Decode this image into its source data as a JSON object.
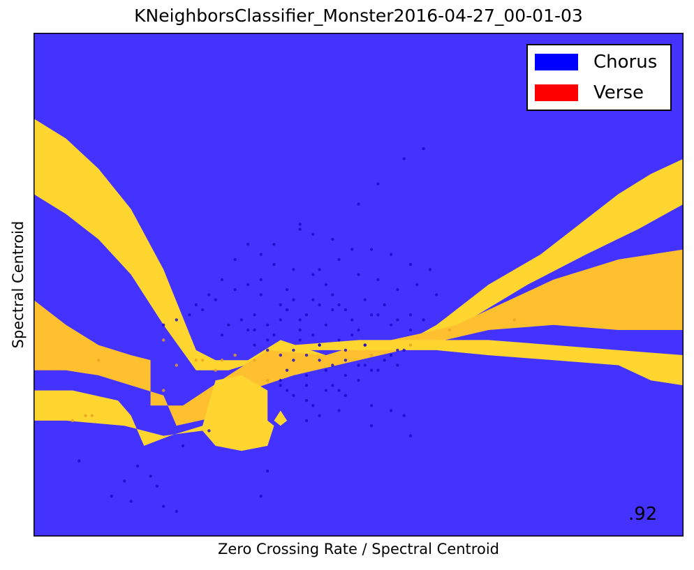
{
  "title": "KNeighborsClassifier_Monster2016-04-27_00-01-03",
  "xlabel": "Zero Crossing Rate / Spectral Centroid",
  "ylabel": "Spectral Centroid",
  "score_text": ".92",
  "legend": [
    {
      "label": "Chorus",
      "color": "#0000ff"
    },
    {
      "label": "Verse",
      "color": "#ff0000"
    }
  ],
  "colors": {
    "chorus_region": "#4433ff",
    "verse_region": "#ffc030",
    "verse_region_light": "#ffd530",
    "chorus_point": "#1a08c8",
    "verse_point": "#e8a020"
  },
  "chart_data": {
    "type": "scatter",
    "title": "KNeighborsClassifier_Monster2016-04-27_00-01-03",
    "xlabel": "Zero Crossing Rate / Spectral Centroid",
    "ylabel": "Spectral Centroid",
    "ticks": "none",
    "grid": false,
    "legend_position": "top-right",
    "background": "decision-region",
    "xlim": [
      0,
      1
    ],
    "ylim": [
      0,
      1
    ],
    "decision_regions": [
      {
        "class": "Verse",
        "shade": "light",
        "outline": [
          [
            0,
            0.83
          ],
          [
            0.05,
            0.79
          ],
          [
            0.1,
            0.73
          ],
          [
            0.15,
            0.65
          ],
          [
            0.2,
            0.53
          ],
          [
            0.25,
            0.37
          ],
          [
            0.28,
            0.35
          ],
          [
            0.33,
            0.35
          ],
          [
            0.38,
            0.39
          ],
          [
            0.45,
            0.36
          ],
          [
            0.55,
            0.37
          ],
          [
            0.62,
            0.42
          ],
          [
            0.7,
            0.5
          ],
          [
            0.78,
            0.56
          ],
          [
            0.85,
            0.63
          ],
          [
            0.9,
            0.68
          ],
          [
            0.95,
            0.72
          ],
          [
            1,
            0.75
          ],
          [
            1,
            0.66
          ],
          [
            0.93,
            0.61
          ],
          [
            0.85,
            0.56
          ],
          [
            0.76,
            0.5
          ],
          [
            0.67,
            0.43
          ],
          [
            0.6,
            0.38
          ],
          [
            0.5,
            0.35
          ],
          [
            0.42,
            0.33
          ],
          [
            0.35,
            0.35
          ],
          [
            0.3,
            0.33
          ],
          [
            0.25,
            0.33
          ],
          [
            0.2,
            0.42
          ],
          [
            0.15,
            0.52
          ],
          [
            0.1,
            0.59
          ],
          [
            0.05,
            0.64
          ],
          [
            0,
            0.68
          ]
        ]
      },
      {
        "class": "Verse",
        "shade": "dark",
        "outline": [
          [
            0,
            0.47
          ],
          [
            0.05,
            0.42
          ],
          [
            0.1,
            0.38
          ],
          [
            0.15,
            0.36
          ],
          [
            0.18,
            0.35
          ],
          [
            0.18,
            0.26
          ],
          [
            0.23,
            0.26
          ],
          [
            0.3,
            0.32
          ],
          [
            0.36,
            0.37
          ],
          [
            0.45,
            0.36
          ],
          [
            0.5,
            0.38
          ],
          [
            0.55,
            0.39
          ],
          [
            0.62,
            0.41
          ],
          [
            0.65,
            0.42
          ],
          [
            0.8,
            0.51
          ],
          [
            0.9,
            0.55
          ],
          [
            0.95,
            0.56
          ],
          [
            1,
            0.57
          ],
          [
            1,
            0.41
          ],
          [
            0.9,
            0.41
          ],
          [
            0.8,
            0.42
          ],
          [
            0.7,
            0.41
          ],
          [
            0.6,
            0.38
          ],
          [
            0.5,
            0.35
          ],
          [
            0.4,
            0.32
          ],
          [
            0.33,
            0.29
          ],
          [
            0.29,
            0.24
          ],
          [
            0.22,
            0.22
          ],
          [
            0.2,
            0.28
          ],
          [
            0.1,
            0.32
          ],
          [
            0.05,
            0.33
          ],
          [
            0,
            0.33
          ]
        ]
      },
      {
        "class": "Verse",
        "shade": "light",
        "outline": [
          [
            0,
            0.29
          ],
          [
            0.06,
            0.29
          ],
          [
            0.13,
            0.27
          ],
          [
            0.15,
            0.24
          ],
          [
            0.17,
            0.18
          ],
          [
            0.21,
            0.2
          ],
          [
            0.26,
            0.22
          ],
          [
            0.28,
            0.31
          ],
          [
            0.32,
            0.32
          ],
          [
            0.36,
            0.29
          ],
          [
            0.36,
            0.23
          ],
          [
            0.37,
            0.22
          ],
          [
            0.36,
            0.18
          ],
          [
            0.32,
            0.17
          ],
          [
            0.28,
            0.18
          ],
          [
            0.26,
            0.21
          ],
          [
            0.2,
            0.2
          ],
          [
            0.14,
            0.22
          ],
          [
            0.05,
            0.23
          ],
          [
            0,
            0.23
          ]
        ]
      },
      {
        "class": "Verse",
        "shade": "light",
        "outline": [
          [
            0.62,
            0.39
          ],
          [
            0.7,
            0.39
          ],
          [
            0.8,
            0.38
          ],
          [
            0.9,
            0.37
          ],
          [
            1,
            0.36
          ],
          [
            1,
            0.3
          ],
          [
            0.95,
            0.31
          ],
          [
            0.9,
            0.34
          ],
          [
            0.8,
            0.35
          ],
          [
            0.7,
            0.36
          ],
          [
            0.62,
            0.37
          ],
          [
            0.5,
            0.37
          ],
          [
            0.4,
            0.37
          ],
          [
            0.4,
            0.38
          ],
          [
            0.5,
            0.39
          ]
        ]
      },
      {
        "class": "Verse",
        "shade": "light",
        "outline": [
          [
            0.38,
            0.25
          ],
          [
            0.39,
            0.23
          ],
          [
            0.38,
            0.22
          ],
          [
            0.37,
            0.23
          ]
        ]
      }
    ],
    "series": [
      {
        "name": "Chorus",
        "x": [
          0.46,
          0.43,
          0.41,
          0.39,
          0.38,
          0.36,
          0.35,
          0.34,
          0.33,
          0.45,
          0.47,
          0.49,
          0.51,
          0.53,
          0.55,
          0.37,
          0.38,
          0.39,
          0.4,
          0.41,
          0.42,
          0.44,
          0.45,
          0.46,
          0.48,
          0.5,
          0.52,
          0.54,
          0.56,
          0.58,
          0.41,
          0.43,
          0.44,
          0.47,
          0.49,
          0.51,
          0.36,
          0.34,
          0.32,
          0.3,
          0.29,
          0.42,
          0.44,
          0.46,
          0.48,
          0.5,
          0.52,
          0.54,
          0.56,
          0.38,
          0.4,
          0.39,
          0.42,
          0.45,
          0.48,
          0.51,
          0.53,
          0.55,
          0.57,
          0.43,
          0.4,
          0.37,
          0.35,
          0.33,
          0.31,
          0.28,
          0.26,
          0.24,
          0.22,
          0.2,
          0.35,
          0.37,
          0.41,
          0.44,
          0.47,
          0.5,
          0.53,
          0.56,
          0.59,
          0.62,
          0.6,
          0.58,
          0.38,
          0.42,
          0.47,
          0.52,
          0.57,
          0.27,
          0.23,
          0.19,
          0.15,
          0.12,
          0.14,
          0.16,
          0.18,
          0.2,
          0.22,
          0.07,
          0.35,
          0.36,
          0.52,
          0.55,
          0.58,
          0.48,
          0.46,
          0.45,
          0.43,
          0.44,
          0.42,
          0.4,
          0.39,
          0.5,
          0.53,
          0.57,
          0.6,
          0.41,
          0.43,
          0.46,
          0.49,
          0.52,
          0.55,
          0.58,
          0.61,
          0.33,
          0.31,
          0.29,
          0.27,
          0.25,
          0.34,
          0.36,
          0.4,
          0.44,
          0.48,
          0.51,
          0.56,
          0.38,
          0.42,
          0.47,
          0.5
        ],
        "y": [
          0.45,
          0.47,
          0.43,
          0.49,
          0.46,
          0.42,
          0.48,
          0.44,
          0.41,
          0.5,
          0.46,
          0.43,
          0.47,
          0.44,
          0.42,
          0.4,
          0.43,
          0.45,
          0.47,
          0.41,
          0.44,
          0.46,
          0.42,
          0.48,
          0.45,
          0.41,
          0.44,
          0.46,
          0.43,
          0.41,
          0.39,
          0.4,
          0.38,
          0.39,
          0.4,
          0.38,
          0.39,
          0.41,
          0.43,
          0.42,
          0.4,
          0.36,
          0.35,
          0.34,
          0.35,
          0.34,
          0.33,
          0.35,
          0.34,
          0.36,
          0.35,
          0.33,
          0.32,
          0.33,
          0.32,
          0.34,
          0.33,
          0.36,
          0.37,
          0.52,
          0.53,
          0.54,
          0.51,
          0.5,
          0.49,
          0.47,
          0.45,
          0.44,
          0.43,
          0.42,
          0.56,
          0.58,
          0.61,
          0.53,
          0.55,
          0.52,
          0.51,
          0.49,
          0.5,
          0.48,
          0.43,
          0.44,
          0.3,
          0.27,
          0.25,
          0.26,
          0.24,
          0.21,
          0.18,
          0.1,
          0.07,
          0.08,
          0.11,
          0.14,
          0.12,
          0.06,
          0.05,
          0.15,
          0.08,
          0.13,
          0.22,
          0.25,
          0.2,
          0.28,
          0.3,
          0.29,
          0.26,
          0.24,
          0.23,
          0.28,
          0.29,
          0.66,
          0.7,
          0.75,
          0.77,
          0.62,
          0.6,
          0.59,
          0.57,
          0.57,
          0.56,
          0.54,
          0.53,
          0.58,
          0.55,
          0.51,
          0.48,
          0.46,
          0.38,
          0.37,
          0.37,
          0.38,
          0.37,
          0.38,
          0.37,
          0.31,
          0.3,
          0.29,
          0.31
        ]
      },
      {
        "name": "Verse",
        "x": [
          0.1,
          0.2,
          0.22,
          0.26,
          0.09,
          0.06,
          0.08,
          0.2,
          0.25,
          0.28,
          0.31,
          0.36,
          0.74,
          0.64,
          0.52,
          0.58,
          0.34,
          0.29
        ],
        "y": [
          0.35,
          0.39,
          0.34,
          0.35,
          0.24,
          0.23,
          0.24,
          0.29,
          0.35,
          0.33,
          0.36,
          0.31,
          0.43,
          0.41,
          0.36,
          0.38,
          0.35,
          0.35
        ]
      }
    ],
    "annotations": [
      ".92"
    ]
  }
}
